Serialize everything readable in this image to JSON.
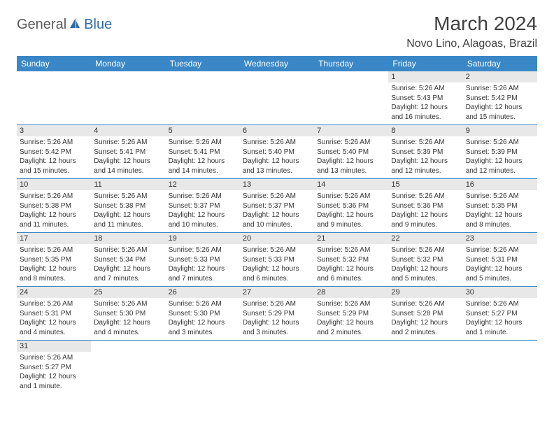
{
  "logo": {
    "part1": "General",
    "part2": "Blue"
  },
  "title": "March 2024",
  "location": "Novo Lino, Alagoas, Brazil",
  "colors": {
    "header_bg": "#3a87c7",
    "header_text": "#ffffff",
    "daynum_bg": "#e8e8e8",
    "border": "#3a87c7",
    "logo_gray": "#5a5a5a",
    "logo_blue": "#2d6da8"
  },
  "weekdays": [
    "Sunday",
    "Monday",
    "Tuesday",
    "Wednesday",
    "Thursday",
    "Friday",
    "Saturday"
  ],
  "weeks": [
    [
      null,
      null,
      null,
      null,
      null,
      {
        "n": "1",
        "sr": "Sunrise: 5:26 AM",
        "ss": "Sunset: 5:43 PM",
        "dl": "Daylight: 12 hours and 16 minutes."
      },
      {
        "n": "2",
        "sr": "Sunrise: 5:26 AM",
        "ss": "Sunset: 5:42 PM",
        "dl": "Daylight: 12 hours and 15 minutes."
      }
    ],
    [
      {
        "n": "3",
        "sr": "Sunrise: 5:26 AM",
        "ss": "Sunset: 5:42 PM",
        "dl": "Daylight: 12 hours and 15 minutes."
      },
      {
        "n": "4",
        "sr": "Sunrise: 5:26 AM",
        "ss": "Sunset: 5:41 PM",
        "dl": "Daylight: 12 hours and 14 minutes."
      },
      {
        "n": "5",
        "sr": "Sunrise: 5:26 AM",
        "ss": "Sunset: 5:41 PM",
        "dl": "Daylight: 12 hours and 14 minutes."
      },
      {
        "n": "6",
        "sr": "Sunrise: 5:26 AM",
        "ss": "Sunset: 5:40 PM",
        "dl": "Daylight: 12 hours and 13 minutes."
      },
      {
        "n": "7",
        "sr": "Sunrise: 5:26 AM",
        "ss": "Sunset: 5:40 PM",
        "dl": "Daylight: 12 hours and 13 minutes."
      },
      {
        "n": "8",
        "sr": "Sunrise: 5:26 AM",
        "ss": "Sunset: 5:39 PM",
        "dl": "Daylight: 12 hours and 12 minutes."
      },
      {
        "n": "9",
        "sr": "Sunrise: 5:26 AM",
        "ss": "Sunset: 5:39 PM",
        "dl": "Daylight: 12 hours and 12 minutes."
      }
    ],
    [
      {
        "n": "10",
        "sr": "Sunrise: 5:26 AM",
        "ss": "Sunset: 5:38 PM",
        "dl": "Daylight: 12 hours and 11 minutes."
      },
      {
        "n": "11",
        "sr": "Sunrise: 5:26 AM",
        "ss": "Sunset: 5:38 PM",
        "dl": "Daylight: 12 hours and 11 minutes."
      },
      {
        "n": "12",
        "sr": "Sunrise: 5:26 AM",
        "ss": "Sunset: 5:37 PM",
        "dl": "Daylight: 12 hours and 10 minutes."
      },
      {
        "n": "13",
        "sr": "Sunrise: 5:26 AM",
        "ss": "Sunset: 5:37 PM",
        "dl": "Daylight: 12 hours and 10 minutes."
      },
      {
        "n": "14",
        "sr": "Sunrise: 5:26 AM",
        "ss": "Sunset: 5:36 PM",
        "dl": "Daylight: 12 hours and 9 minutes."
      },
      {
        "n": "15",
        "sr": "Sunrise: 5:26 AM",
        "ss": "Sunset: 5:36 PM",
        "dl": "Daylight: 12 hours and 9 minutes."
      },
      {
        "n": "16",
        "sr": "Sunrise: 5:26 AM",
        "ss": "Sunset: 5:35 PM",
        "dl": "Daylight: 12 hours and 8 minutes."
      }
    ],
    [
      {
        "n": "17",
        "sr": "Sunrise: 5:26 AM",
        "ss": "Sunset: 5:35 PM",
        "dl": "Daylight: 12 hours and 8 minutes."
      },
      {
        "n": "18",
        "sr": "Sunrise: 5:26 AM",
        "ss": "Sunset: 5:34 PM",
        "dl": "Daylight: 12 hours and 7 minutes."
      },
      {
        "n": "19",
        "sr": "Sunrise: 5:26 AM",
        "ss": "Sunset: 5:33 PM",
        "dl": "Daylight: 12 hours and 7 minutes."
      },
      {
        "n": "20",
        "sr": "Sunrise: 5:26 AM",
        "ss": "Sunset: 5:33 PM",
        "dl": "Daylight: 12 hours and 6 minutes."
      },
      {
        "n": "21",
        "sr": "Sunrise: 5:26 AM",
        "ss": "Sunset: 5:32 PM",
        "dl": "Daylight: 12 hours and 6 minutes."
      },
      {
        "n": "22",
        "sr": "Sunrise: 5:26 AM",
        "ss": "Sunset: 5:32 PM",
        "dl": "Daylight: 12 hours and 5 minutes."
      },
      {
        "n": "23",
        "sr": "Sunrise: 5:26 AM",
        "ss": "Sunset: 5:31 PM",
        "dl": "Daylight: 12 hours and 5 minutes."
      }
    ],
    [
      {
        "n": "24",
        "sr": "Sunrise: 5:26 AM",
        "ss": "Sunset: 5:31 PM",
        "dl": "Daylight: 12 hours and 4 minutes."
      },
      {
        "n": "25",
        "sr": "Sunrise: 5:26 AM",
        "ss": "Sunset: 5:30 PM",
        "dl": "Daylight: 12 hours and 4 minutes."
      },
      {
        "n": "26",
        "sr": "Sunrise: 5:26 AM",
        "ss": "Sunset: 5:30 PM",
        "dl": "Daylight: 12 hours and 3 minutes."
      },
      {
        "n": "27",
        "sr": "Sunrise: 5:26 AM",
        "ss": "Sunset: 5:29 PM",
        "dl": "Daylight: 12 hours and 3 minutes."
      },
      {
        "n": "28",
        "sr": "Sunrise: 5:26 AM",
        "ss": "Sunset: 5:29 PM",
        "dl": "Daylight: 12 hours and 2 minutes."
      },
      {
        "n": "29",
        "sr": "Sunrise: 5:26 AM",
        "ss": "Sunset: 5:28 PM",
        "dl": "Daylight: 12 hours and 2 minutes."
      },
      {
        "n": "30",
        "sr": "Sunrise: 5:26 AM",
        "ss": "Sunset: 5:27 PM",
        "dl": "Daylight: 12 hours and 1 minute."
      }
    ],
    [
      {
        "n": "31",
        "sr": "Sunrise: 5:26 AM",
        "ss": "Sunset: 5:27 PM",
        "dl": "Daylight: 12 hours and 1 minute."
      },
      null,
      null,
      null,
      null,
      null,
      null
    ]
  ]
}
